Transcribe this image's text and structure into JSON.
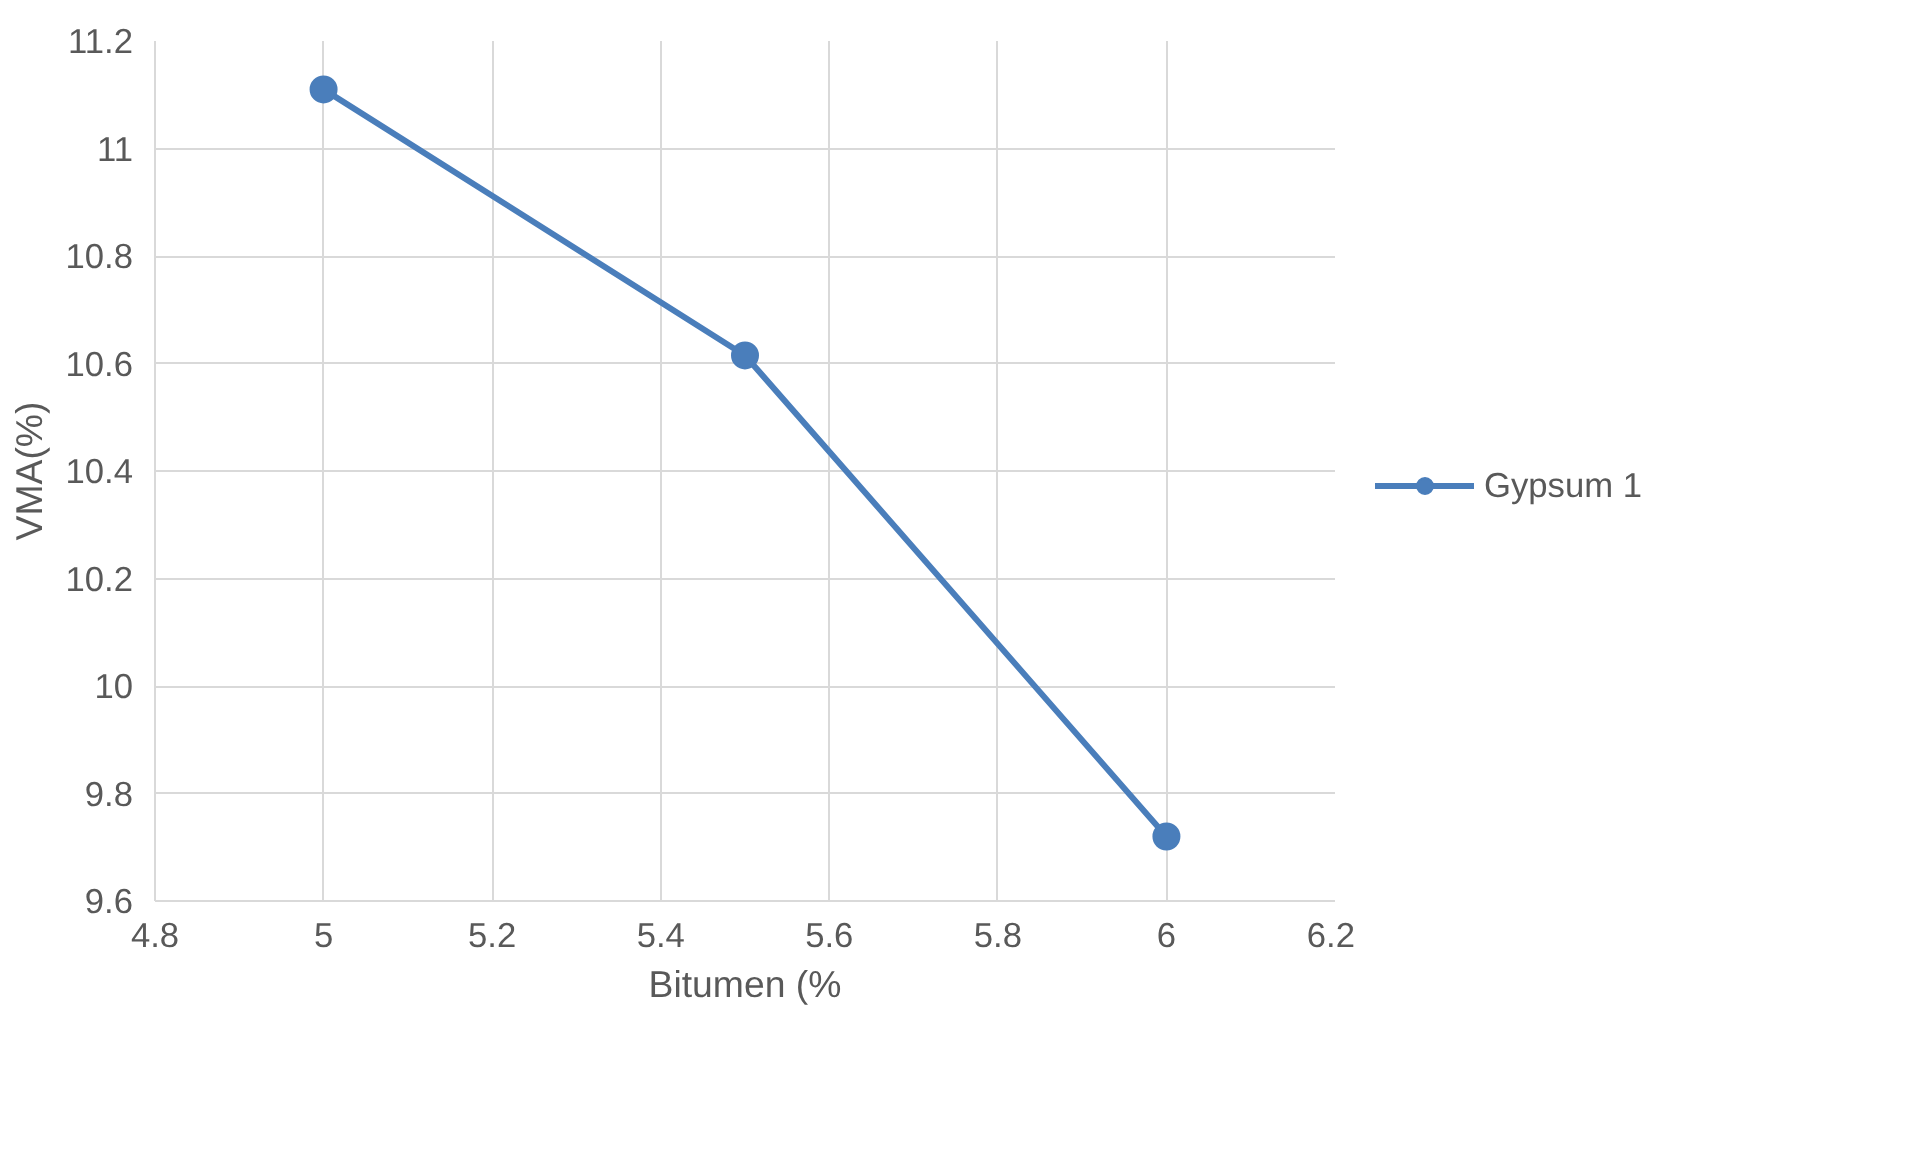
{
  "chart_data": {
    "type": "line",
    "xlabel": "Bitumen (%",
    "ylabel": "VMA(%)",
    "x": [
      5,
      5.5,
      6
    ],
    "series": [
      {
        "name": "Gypsum 1",
        "color": "#4a7ebb",
        "values": [
          11.11,
          10.615,
          9.72
        ]
      }
    ],
    "xlim": [
      4.8,
      6.2
    ],
    "xticks": [
      4.8,
      5,
      5.2,
      5.4,
      5.6,
      5.8,
      6,
      6.2
    ],
    "ylim": [
      9.6,
      11.2
    ],
    "yticks": [
      9.6,
      9.8,
      10,
      10.2,
      10.4,
      10.6,
      10.8,
      11,
      11.2
    ],
    "grid": true,
    "legend": "right",
    "marker": "circle",
    "line_style": "solid"
  }
}
